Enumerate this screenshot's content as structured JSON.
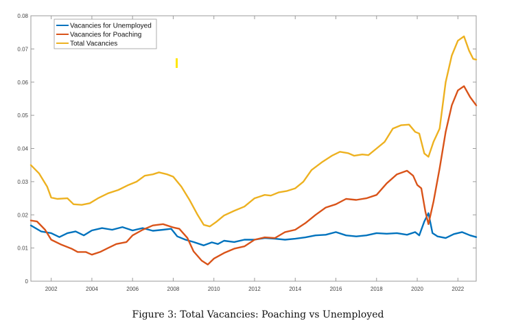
{
  "chart_data": {
    "type": "line",
    "title": "",
    "caption": "Figure 3: Total Vacancies: Poaching vs Unemployed",
    "xlabel": "",
    "ylabel": "",
    "xlim": [
      2001,
      2022.9
    ],
    "ylim": [
      0,
      0.08
    ],
    "grid": false,
    "legend_position": "top-left",
    "x_ticks": [
      "2002",
      "2004",
      "2006",
      "2008",
      "2010",
      "2012",
      "2014",
      "2016",
      "2018",
      "2020",
      "2022"
    ],
    "y_ticks": [
      "0",
      "0.01",
      "0.02",
      "0.03",
      "0.04",
      "0.05",
      "0.06",
      "0.07",
      "0.08"
    ],
    "series": [
      {
        "name": "Vacancies for Unemployed",
        "color": "#0072BD",
        "points": [
          [
            2001.0,
            0.0168
          ],
          [
            2001.5,
            0.015
          ],
          [
            2002.0,
            0.0145
          ],
          [
            2002.4,
            0.0133
          ],
          [
            2002.8,
            0.0145
          ],
          [
            2003.2,
            0.015
          ],
          [
            2003.6,
            0.0138
          ],
          [
            2004.0,
            0.0153
          ],
          [
            2004.5,
            0.016
          ],
          [
            2005.0,
            0.0155
          ],
          [
            2005.5,
            0.0163
          ],
          [
            2006.0,
            0.0153
          ],
          [
            2006.5,
            0.016
          ],
          [
            2007.0,
            0.0152
          ],
          [
            2007.5,
            0.0155
          ],
          [
            2007.9,
            0.0158
          ],
          [
            2008.2,
            0.0135
          ],
          [
            2008.6,
            0.0125
          ],
          [
            2009.0,
            0.0118
          ],
          [
            2009.5,
            0.0108
          ],
          [
            2009.9,
            0.0117
          ],
          [
            2010.2,
            0.0112
          ],
          [
            2010.5,
            0.0122
          ],
          [
            2011.0,
            0.0118
          ],
          [
            2011.5,
            0.0125
          ],
          [
            2012.0,
            0.0125
          ],
          [
            2012.5,
            0.013
          ],
          [
            2013.0,
            0.0128
          ],
          [
            2013.5,
            0.0125
          ],
          [
            2014.0,
            0.0128
          ],
          [
            2014.5,
            0.0132
          ],
          [
            2015.0,
            0.0138
          ],
          [
            2015.5,
            0.014
          ],
          [
            2016.0,
            0.0148
          ],
          [
            2016.5,
            0.0138
          ],
          [
            2017.0,
            0.0135
          ],
          [
            2017.5,
            0.0138
          ],
          [
            2018.0,
            0.0145
          ],
          [
            2018.5,
            0.0143
          ],
          [
            2019.0,
            0.0145
          ],
          [
            2019.5,
            0.014
          ],
          [
            2019.9,
            0.0148
          ],
          [
            2020.1,
            0.0138
          ],
          [
            2020.35,
            0.018
          ],
          [
            2020.55,
            0.0205
          ],
          [
            2020.75,
            0.0145
          ],
          [
            2021.0,
            0.0135
          ],
          [
            2021.4,
            0.013
          ],
          [
            2021.8,
            0.0142
          ],
          [
            2022.2,
            0.0148
          ],
          [
            2022.6,
            0.0138
          ],
          [
            2022.9,
            0.0133
          ]
        ]
      },
      {
        "name": "Vacancies for Poaching",
        "color": "#D95319",
        "points": [
          [
            2001.0,
            0.0183
          ],
          [
            2001.3,
            0.018
          ],
          [
            2001.7,
            0.0155
          ],
          [
            2002.0,
            0.0125
          ],
          [
            2002.5,
            0.011
          ],
          [
            2003.0,
            0.0098
          ],
          [
            2003.3,
            0.0088
          ],
          [
            2003.7,
            0.0088
          ],
          [
            2004.0,
            0.008
          ],
          [
            2004.4,
            0.0088
          ],
          [
            2004.8,
            0.01
          ],
          [
            2005.2,
            0.0112
          ],
          [
            2005.7,
            0.0118
          ],
          [
            2006.0,
            0.0138
          ],
          [
            2006.5,
            0.0155
          ],
          [
            2007.0,
            0.0168
          ],
          [
            2007.5,
            0.0172
          ],
          [
            2008.0,
            0.0162
          ],
          [
            2008.3,
            0.0158
          ],
          [
            2008.7,
            0.013
          ],
          [
            2009.0,
            0.009
          ],
          [
            2009.4,
            0.0062
          ],
          [
            2009.7,
            0.005
          ],
          [
            2010.0,
            0.0068
          ],
          [
            2010.5,
            0.0085
          ],
          [
            2011.0,
            0.0098
          ],
          [
            2011.5,
            0.0105
          ],
          [
            2012.0,
            0.0125
          ],
          [
            2012.5,
            0.0132
          ],
          [
            2013.0,
            0.013
          ],
          [
            2013.5,
            0.0148
          ],
          [
            2014.0,
            0.0155
          ],
          [
            2014.5,
            0.0175
          ],
          [
            2015.0,
            0.02
          ],
          [
            2015.5,
            0.0222
          ],
          [
            2016.0,
            0.0232
          ],
          [
            2016.5,
            0.0248
          ],
          [
            2017.0,
            0.0245
          ],
          [
            2017.5,
            0.025
          ],
          [
            2018.0,
            0.026
          ],
          [
            2018.5,
            0.0295
          ],
          [
            2019.0,
            0.0322
          ],
          [
            2019.5,
            0.0333
          ],
          [
            2019.8,
            0.0318
          ],
          [
            2020.0,
            0.029
          ],
          [
            2020.2,
            0.028
          ],
          [
            2020.4,
            0.021
          ],
          [
            2020.55,
            0.0172
          ],
          [
            2020.8,
            0.024
          ],
          [
            2021.1,
            0.034
          ],
          [
            2021.4,
            0.045
          ],
          [
            2021.7,
            0.053
          ],
          [
            2022.0,
            0.0575
          ],
          [
            2022.3,
            0.0588
          ],
          [
            2022.6,
            0.0555
          ],
          [
            2022.9,
            0.053
          ]
        ]
      },
      {
        "name": "Total Vacancies",
        "color": "#EDB120",
        "points": [
          [
            2001.0,
            0.035
          ],
          [
            2001.4,
            0.0325
          ],
          [
            2001.8,
            0.0285
          ],
          [
            2002.0,
            0.0252
          ],
          [
            2002.3,
            0.0248
          ],
          [
            2002.8,
            0.025
          ],
          [
            2003.1,
            0.0232
          ],
          [
            2003.5,
            0.023
          ],
          [
            2003.9,
            0.0235
          ],
          [
            2004.3,
            0.025
          ],
          [
            2004.8,
            0.0265
          ],
          [
            2005.3,
            0.0275
          ],
          [
            2005.8,
            0.029
          ],
          [
            2006.2,
            0.03
          ],
          [
            2006.6,
            0.0318
          ],
          [
            2007.0,
            0.0322
          ],
          [
            2007.3,
            0.0328
          ],
          [
            2007.7,
            0.0322
          ],
          [
            2008.0,
            0.0315
          ],
          [
            2008.4,
            0.0285
          ],
          [
            2008.8,
            0.0245
          ],
          [
            2009.2,
            0.02
          ],
          [
            2009.5,
            0.017
          ],
          [
            2009.8,
            0.0165
          ],
          [
            2010.1,
            0.0178
          ],
          [
            2010.5,
            0.0198
          ],
          [
            2011.0,
            0.0212
          ],
          [
            2011.5,
            0.0225
          ],
          [
            2012.0,
            0.025
          ],
          [
            2012.5,
            0.026
          ],
          [
            2012.8,
            0.0258
          ],
          [
            2013.2,
            0.0268
          ],
          [
            2013.6,
            0.0272
          ],
          [
            2014.0,
            0.028
          ],
          [
            2014.4,
            0.03
          ],
          [
            2014.8,
            0.0335
          ],
          [
            2015.3,
            0.0358
          ],
          [
            2015.8,
            0.0378
          ],
          [
            2016.2,
            0.039
          ],
          [
            2016.6,
            0.0386
          ],
          [
            2016.9,
            0.0378
          ],
          [
            2017.3,
            0.0382
          ],
          [
            2017.6,
            0.038
          ],
          [
            2018.0,
            0.04
          ],
          [
            2018.4,
            0.042
          ],
          [
            2018.8,
            0.046
          ],
          [
            2019.2,
            0.047
          ],
          [
            2019.6,
            0.0472
          ],
          [
            2019.9,
            0.045
          ],
          [
            2020.1,
            0.0445
          ],
          [
            2020.35,
            0.0385
          ],
          [
            2020.55,
            0.0375
          ],
          [
            2020.8,
            0.042
          ],
          [
            2021.1,
            0.046
          ],
          [
            2021.4,
            0.06
          ],
          [
            2021.7,
            0.068
          ],
          [
            2022.0,
            0.0725
          ],
          [
            2022.3,
            0.0738
          ],
          [
            2022.55,
            0.0695
          ],
          [
            2022.75,
            0.067
          ],
          [
            2022.9,
            0.0668
          ]
        ]
      }
    ]
  }
}
